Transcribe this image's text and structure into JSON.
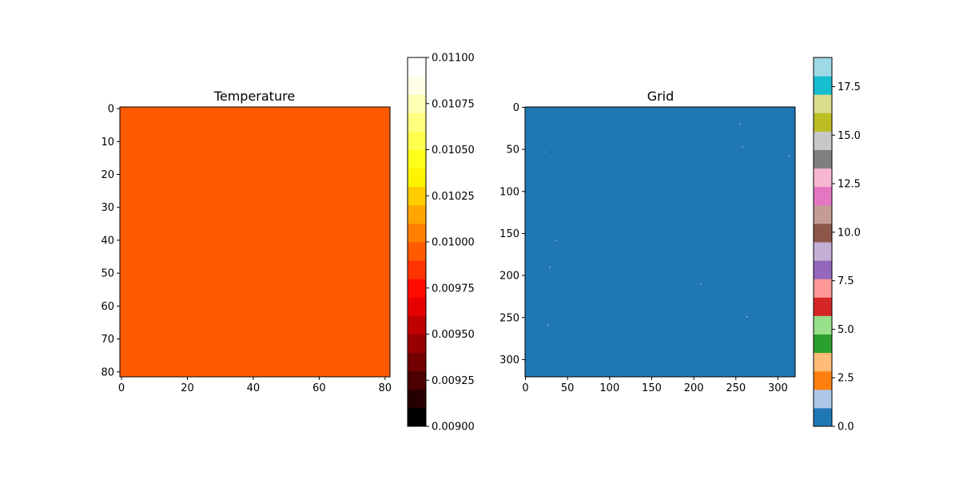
{
  "chart_data": [
    {
      "type": "heatmap",
      "title": "Temperature",
      "xlabel": "",
      "ylabel": "",
      "xlim": [
        -0.5,
        81.5
      ],
      "ylim": [
        81.5,
        -0.5
      ],
      "x_ticks": [
        0,
        20,
        40,
        60,
        80
      ],
      "y_ticks": [
        0,
        10,
        20,
        30,
        40,
        50,
        60,
        70,
        80
      ],
      "value": 0.01,
      "fill_color": "#ff5a00",
      "colorbar": {
        "range": [
          0.009,
          0.011
        ],
        "levels": 20,
        "colormap": "hot",
        "ticks": [
          "0.00900",
          "0.00925",
          "0.00950",
          "0.00975",
          "0.01000",
          "0.01025",
          "0.01050",
          "0.01075",
          "0.01100"
        ],
        "tick_values": [
          0.009,
          0.00925,
          0.0095,
          0.00975,
          0.01,
          0.01025,
          0.0105,
          0.01075,
          0.011
        ],
        "colors": [
          "#000000",
          "#260000",
          "#4d0000",
          "#730000",
          "#990000",
          "#bf0000",
          "#e60000",
          "#ff0c00",
          "#ff3300",
          "#ff5a00",
          "#ff8000",
          "#ffa600",
          "#ffcc00",
          "#fff300",
          "#ffff1a",
          "#ffff4d",
          "#ffff80",
          "#ffffb3",
          "#ffffe6",
          "#ffffff"
        ]
      }
    },
    {
      "type": "heatmap",
      "title": "Grid",
      "xlabel": "",
      "ylabel": "",
      "xlim": [
        -0.5,
        320.5
      ],
      "ylim": [
        320.5,
        -0.5
      ],
      "x_ticks": [
        0,
        50,
        100,
        150,
        200,
        250,
        300
      ],
      "y_ticks": [
        0,
        50,
        100,
        150,
        200,
        250,
        300
      ],
      "background_value": 0,
      "fill_color": "#1f77b4",
      "sparse_points": [
        {
          "x": 255,
          "y": 20
        },
        {
          "x": 258,
          "y": 47
        },
        {
          "x": 22,
          "y": 53
        },
        {
          "x": 313,
          "y": 58
        },
        {
          "x": 36,
          "y": 158
        },
        {
          "x": 29,
          "y": 190
        },
        {
          "x": 208,
          "y": 210
        },
        {
          "x": 263,
          "y": 249
        },
        {
          "x": 27,
          "y": 259
        }
      ],
      "point_color": "#aec7e8",
      "colorbar": {
        "range": [
          0,
          19
        ],
        "colormap": "tab20",
        "ticks": [
          "0.0",
          "2.5",
          "5.0",
          "7.5",
          "10.0",
          "12.5",
          "15.0",
          "17.5"
        ],
        "tick_values": [
          0,
          2.5,
          5,
          7.5,
          10,
          12.5,
          15,
          17.5
        ],
        "colors": [
          "#1f77b4",
          "#aec7e8",
          "#ff7f0e",
          "#ffbb78",
          "#2ca02c",
          "#98df8a",
          "#d62728",
          "#ff9896",
          "#9467bd",
          "#c5b0d5",
          "#8c564b",
          "#c49c94",
          "#e377c2",
          "#f7b6d2",
          "#7f7f7f",
          "#c7c7c7",
          "#bcbd22",
          "#dbdb8d",
          "#17becf",
          "#9edae5"
        ]
      }
    }
  ]
}
